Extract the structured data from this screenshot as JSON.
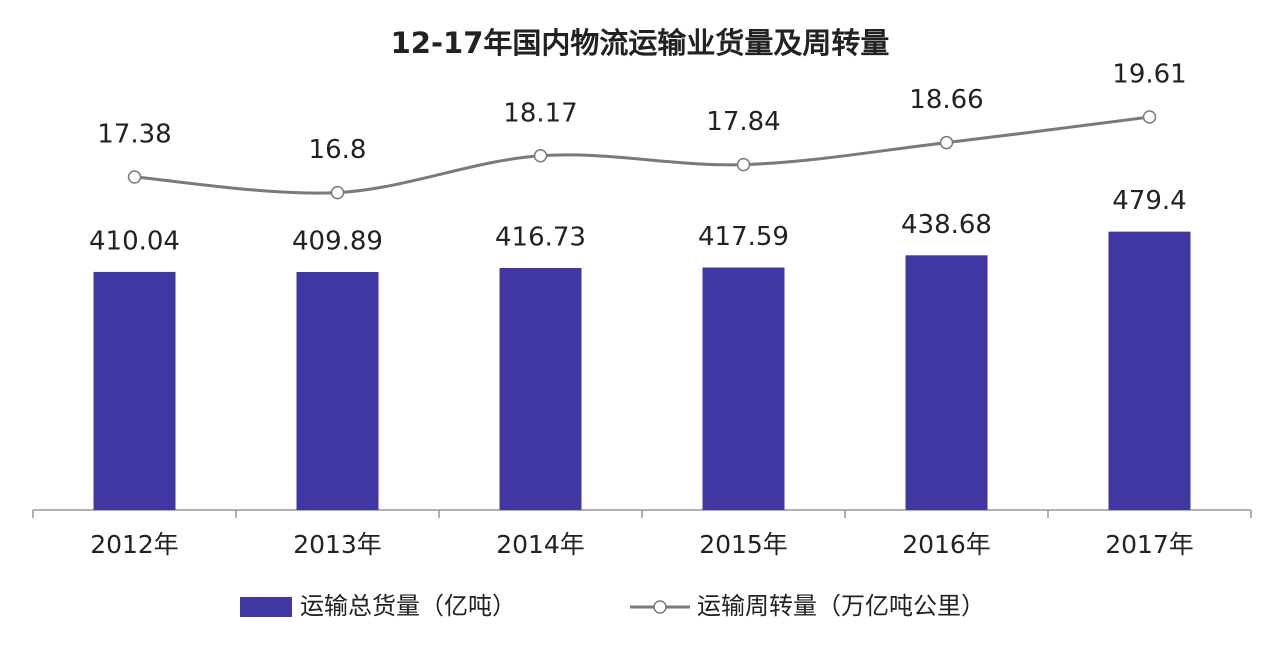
{
  "chart_data": {
    "type": "bar-line",
    "title": "12-17年国内物流运输业货量及周转量",
    "categories": [
      "2012年",
      "2013年",
      "2014年",
      "2015年",
      "2016年",
      "2017年"
    ],
    "ylim": [
      0,
      775
    ],
    "y2lim": [
      5,
      21.73
    ],
    "series": [
      {
        "name": "运输总货量（亿吨）",
        "type": "bar",
        "color": "#4037a2",
        "values": [
          410.04,
          409.89,
          416.73,
          417.59,
          438.68,
          479.4
        ]
      },
      {
        "name": "运输周转量（万亿吨公里）",
        "type": "line",
        "axis": "y2",
        "color": "#7a7a7a",
        "values": [
          17.38,
          16.8,
          18.17,
          17.84,
          18.66,
          19.61
        ]
      }
    ]
  }
}
